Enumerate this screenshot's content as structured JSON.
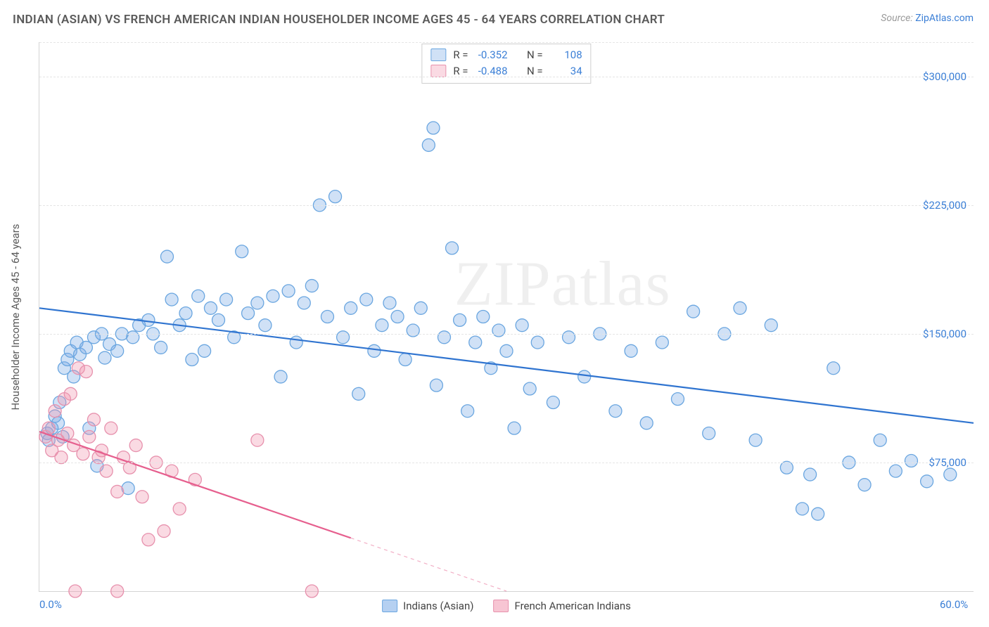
{
  "title": "INDIAN (ASIAN) VS FRENCH AMERICAN INDIAN HOUSEHOLDER INCOME AGES 45 - 64 YEARS CORRELATION CHART",
  "source_label": "Source:",
  "source_value": "ZipAtlas.com",
  "watermark": "ZIPatlas",
  "y_axis_title": "Householder Income Ages 45 - 64 years",
  "chart": {
    "type": "scatter",
    "xlim": [
      0,
      60
    ],
    "ylim": [
      0,
      320000
    ],
    "x_ticks": [
      {
        "v": 0,
        "label": "0.0%"
      },
      {
        "v": 60,
        "label": "60.0%"
      }
    ],
    "y_ticks": [
      {
        "v": 75000,
        "label": "$75,000"
      },
      {
        "v": 150000,
        "label": "$150,000"
      },
      {
        "v": 225000,
        "label": "$225,000"
      },
      {
        "v": 300000,
        "label": "$300,000"
      }
    ],
    "grid_color": "#e5e5e5",
    "background_color": "#ffffff",
    "marker_radius": 9,
    "marker_stroke_width": 1.3,
    "trend_line_width": 2.2,
    "series": [
      {
        "name": "Indians (Asian)",
        "fill": "rgba(120,170,230,0.35)",
        "stroke": "#6aa6e0",
        "line_color": "#2f74d0",
        "R": "-0.352",
        "N": "108",
        "trend": {
          "x1": 0,
          "y1": 165000,
          "x2": 60,
          "y2": 98000,
          "solid_until_x": 60
        },
        "points": [
          [
            0.5,
            92000
          ],
          [
            0.6,
            88000
          ],
          [
            0.8,
            95000
          ],
          [
            1.0,
            102000
          ],
          [
            1.2,
            98000
          ],
          [
            1.3,
            110000
          ],
          [
            1.5,
            90000
          ],
          [
            1.6,
            130000
          ],
          [
            1.8,
            135000
          ],
          [
            2.0,
            140000
          ],
          [
            2.2,
            125000
          ],
          [
            2.4,
            145000
          ],
          [
            2.6,
            138000
          ],
          [
            3.0,
            142000
          ],
          [
            3.2,
            95000
          ],
          [
            3.5,
            148000
          ],
          [
            3.7,
            73000
          ],
          [
            4.0,
            150000
          ],
          [
            4.2,
            136000
          ],
          [
            4.5,
            144000
          ],
          [
            5.0,
            140000
          ],
          [
            5.3,
            150000
          ],
          [
            5.7,
            60000
          ],
          [
            6.0,
            148000
          ],
          [
            6.4,
            155000
          ],
          [
            7.0,
            158000
          ],
          [
            7.3,
            150000
          ],
          [
            7.8,
            142000
          ],
          [
            8.2,
            195000
          ],
          [
            8.5,
            170000
          ],
          [
            9.0,
            155000
          ],
          [
            9.4,
            162000
          ],
          [
            9.8,
            135000
          ],
          [
            10.2,
            172000
          ],
          [
            10.6,
            140000
          ],
          [
            11.0,
            165000
          ],
          [
            11.5,
            158000
          ],
          [
            12.0,
            170000
          ],
          [
            12.5,
            148000
          ],
          [
            13.0,
            198000
          ],
          [
            13.4,
            162000
          ],
          [
            14.0,
            168000
          ],
          [
            14.5,
            155000
          ],
          [
            15.0,
            172000
          ],
          [
            15.5,
            125000
          ],
          [
            16.0,
            175000
          ],
          [
            16.5,
            145000
          ],
          [
            17.0,
            168000
          ],
          [
            17.5,
            178000
          ],
          [
            18.0,
            225000
          ],
          [
            18.5,
            160000
          ],
          [
            19.0,
            230000
          ],
          [
            19.5,
            148000
          ],
          [
            20.0,
            165000
          ],
          [
            20.5,
            115000
          ],
          [
            21.0,
            170000
          ],
          [
            21.5,
            140000
          ],
          [
            22.0,
            155000
          ],
          [
            22.5,
            168000
          ],
          [
            23.0,
            160000
          ],
          [
            23.5,
            135000
          ],
          [
            24.0,
            152000
          ],
          [
            24.5,
            165000
          ],
          [
            25.0,
            260000
          ],
          [
            25.3,
            270000
          ],
          [
            25.5,
            120000
          ],
          [
            26.0,
            148000
          ],
          [
            26.5,
            200000
          ],
          [
            27.0,
            158000
          ],
          [
            27.5,
            105000
          ],
          [
            28.0,
            145000
          ],
          [
            28.5,
            160000
          ],
          [
            29.0,
            130000
          ],
          [
            29.5,
            152000
          ],
          [
            30.0,
            140000
          ],
          [
            30.5,
            95000
          ],
          [
            31.0,
            155000
          ],
          [
            31.5,
            118000
          ],
          [
            32.0,
            145000
          ],
          [
            33.0,
            110000
          ],
          [
            34.0,
            148000
          ],
          [
            35.0,
            125000
          ],
          [
            36.0,
            150000
          ],
          [
            37.0,
            105000
          ],
          [
            38.0,
            140000
          ],
          [
            39.0,
            98000
          ],
          [
            40.0,
            145000
          ],
          [
            41.0,
            112000
          ],
          [
            42.0,
            163000
          ],
          [
            43.0,
            92000
          ],
          [
            44.0,
            150000
          ],
          [
            45.0,
            165000
          ],
          [
            46.0,
            88000
          ],
          [
            47.0,
            155000
          ],
          [
            48.0,
            72000
          ],
          [
            49.0,
            48000
          ],
          [
            49.5,
            68000
          ],
          [
            50.0,
            45000
          ],
          [
            51.0,
            130000
          ],
          [
            52.0,
            75000
          ],
          [
            53.0,
            62000
          ],
          [
            54.0,
            88000
          ],
          [
            55.0,
            70000
          ],
          [
            56.0,
            76000
          ],
          [
            57.0,
            64000
          ],
          [
            58.5,
            68000
          ]
        ]
      },
      {
        "name": "French American Indians",
        "fill": "rgba(240,150,175,0.35)",
        "stroke": "#e791ad",
        "line_color": "#e65f8e",
        "R": "-0.488",
        "N": "34",
        "trend": {
          "x1": 0,
          "y1": 93000,
          "x2": 30,
          "y2": 0,
          "solid_until_x": 20
        },
        "points": [
          [
            0.4,
            90000
          ],
          [
            0.6,
            95000
          ],
          [
            0.8,
            82000
          ],
          [
            1.0,
            105000
          ],
          [
            1.2,
            88000
          ],
          [
            1.4,
            78000
          ],
          [
            1.6,
            112000
          ],
          [
            1.8,
            92000
          ],
          [
            2.0,
            115000
          ],
          [
            2.2,
            85000
          ],
          [
            2.5,
            130000
          ],
          [
            2.8,
            80000
          ],
          [
            3.0,
            128000
          ],
          [
            3.2,
            90000
          ],
          [
            3.5,
            100000
          ],
          [
            3.8,
            78000
          ],
          [
            4.0,
            82000
          ],
          [
            4.3,
            70000
          ],
          [
            4.6,
            95000
          ],
          [
            5.0,
            58000
          ],
          [
            5.4,
            78000
          ],
          [
            5.8,
            72000
          ],
          [
            6.2,
            85000
          ],
          [
            6.6,
            55000
          ],
          [
            7.0,
            30000
          ],
          [
            7.5,
            75000
          ],
          [
            8.0,
            35000
          ],
          [
            8.5,
            70000
          ],
          [
            9.0,
            48000
          ],
          [
            10.0,
            65000
          ],
          [
            14.0,
            88000
          ],
          [
            2.3,
            0
          ],
          [
            5.0,
            0
          ],
          [
            17.5,
            0
          ]
        ]
      }
    ]
  },
  "legend_bottom": [
    {
      "label": "Indians (Asian)",
      "fill": "rgba(120,170,230,0.55)",
      "stroke": "#6aa6e0"
    },
    {
      "label": "French American Indians",
      "fill": "rgba(240,150,175,0.55)",
      "stroke": "#e791ad"
    }
  ]
}
